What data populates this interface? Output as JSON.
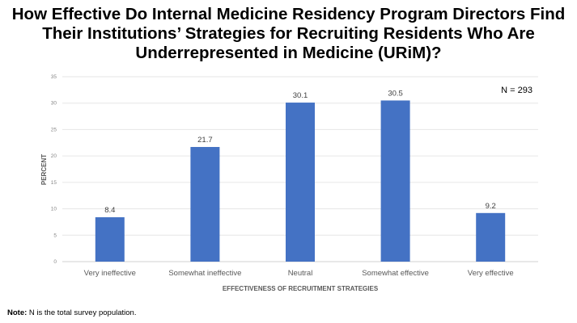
{
  "title": "How Effective Do Internal Medicine Residency Program Directors Find Their Institutions’ Strategies for Recruiting Residents Who Are Underrepresented in Medicine (URiM)?",
  "note": {
    "label": "Note:",
    "text": " N is the total survey population."
  },
  "chart_data": {
    "type": "bar",
    "categories": [
      "Very ineffective",
      "Somewhat ineffective",
      "Neutral",
      "Somewhat effective",
      "Very effective"
    ],
    "values": [
      8.4,
      21.7,
      30.1,
      30.5,
      9.2
    ],
    "data_labels": [
      "8.4",
      "21.7",
      "30.1",
      "30.5",
      "9.2"
    ],
    "xlabel": "EFFECTIVENESS OF RECRUITMENT STRATEGIES",
    "ylabel": "PERCENT",
    "ylim": [
      0,
      35
    ],
    "yticks": [
      0,
      5,
      10,
      15,
      20,
      25,
      30,
      35
    ],
    "grid": true,
    "annotation": "N = 293",
    "bar_color": "#4472C4"
  }
}
